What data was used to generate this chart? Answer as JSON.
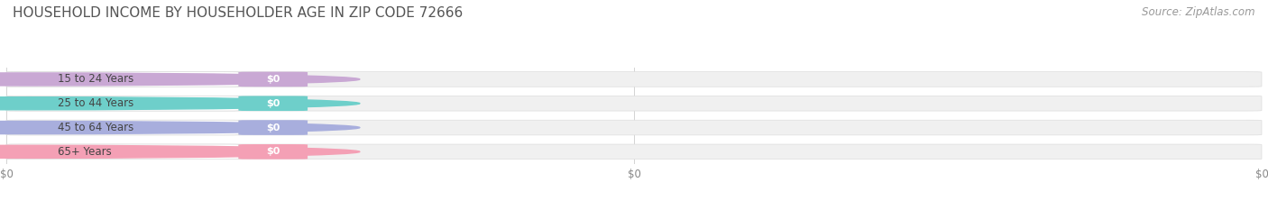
{
  "title": "HOUSEHOLD INCOME BY HOUSEHOLDER AGE IN ZIP CODE 72666",
  "source_text": "Source: ZipAtlas.com",
  "categories": [
    "15 to 24 Years",
    "25 to 44 Years",
    "45 to 64 Years",
    "65+ Years"
  ],
  "values": [
    0,
    0,
    0,
    0
  ],
  "bar_colors": [
    "#c9a8d4",
    "#6ecfca",
    "#a8aedd",
    "#f4a0b5"
  ],
  "bar_bg_color": "#f0f0f0",
  "title_fontsize": 11,
  "source_fontsize": 8.5,
  "background_color": "#ffffff",
  "xticks": [
    0,
    0.5,
    1.0
  ],
  "xtick_labels": [
    "$0",
    "$0",
    "$0"
  ],
  "bar_height": 0.62,
  "figsize": [
    14.06,
    2.33
  ],
  "dpi": 100
}
